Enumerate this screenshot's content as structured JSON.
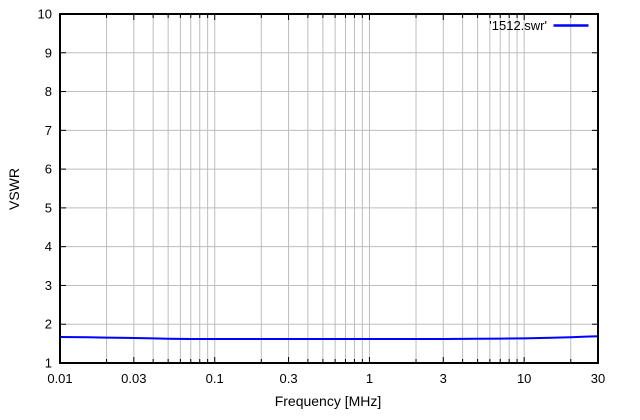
{
  "colors": {
    "background": "#ffffff",
    "plot_border": "#000000",
    "grid": "#bdbdbd",
    "tick": "#000000",
    "text": "#000000",
    "series_line": "#0000ff"
  },
  "chart_data": {
    "type": "line",
    "title": "",
    "xlabel": "Frequency [MHz]",
    "ylabel": "VSWR",
    "x_scale": "log",
    "y_scale": "linear",
    "xlim": [
      0.01,
      30
    ],
    "ylim": [
      1,
      10
    ],
    "grid": true,
    "x_major_ticks": [
      0.01,
      0.03,
      0.1,
      0.3,
      1,
      3,
      10,
      30
    ],
    "x_major_tick_labels": [
      "0.01",
      "0.03",
      "0.1",
      "0.3",
      "1",
      "3",
      "10",
      "30"
    ],
    "y_ticks": [
      1,
      2,
      3,
      4,
      5,
      6,
      7,
      8,
      9,
      10
    ],
    "y_tick_labels": [
      "1",
      "2",
      "3",
      "4",
      "5",
      "6",
      "7",
      "8",
      "9",
      "10"
    ],
    "legend_position": "top-right",
    "series": [
      {
        "name": "'1512.swr'",
        "color": "#0000ff",
        "points": [
          [
            0.01,
            1.67
          ],
          [
            0.015,
            1.665
          ],
          [
            0.02,
            1.655
          ],
          [
            0.03,
            1.645
          ],
          [
            0.04,
            1.635
          ],
          [
            0.05,
            1.625
          ],
          [
            0.07,
            1.62
          ],
          [
            0.1,
            1.62
          ],
          [
            0.2,
            1.62
          ],
          [
            0.3,
            1.62
          ],
          [
            0.5,
            1.62
          ],
          [
            0.7,
            1.62
          ],
          [
            1,
            1.62
          ],
          [
            2,
            1.62
          ],
          [
            3,
            1.62
          ],
          [
            5,
            1.625
          ],
          [
            7,
            1.63
          ],
          [
            10,
            1.635
          ],
          [
            15,
            1.65
          ],
          [
            20,
            1.665
          ],
          [
            25,
            1.68
          ],
          [
            30,
            1.69
          ]
        ]
      }
    ]
  }
}
